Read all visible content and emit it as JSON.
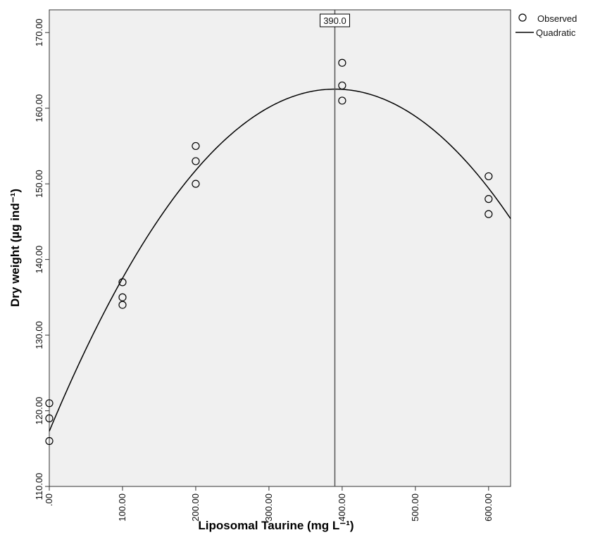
{
  "chart_data": {
    "type": "scatter",
    "xlabel": "Liposomal Taurine (mg L⁻¹)",
    "ylabel": "Dry weight (µg ind⁻¹)",
    "xlim": [
      0,
      630
    ],
    "ylim": [
      110,
      173
    ],
    "x_ticks": [
      0,
      100,
      200,
      300,
      400,
      500,
      600
    ],
    "x_tick_labels": [
      ".00",
      "100.00",
      "200.00",
      "300.00",
      "400.00",
      "500.00",
      "600.00"
    ],
    "y_ticks": [
      110,
      120,
      130,
      140,
      150,
      160,
      170
    ],
    "y_tick_labels": [
      "110.00",
      "120.00",
      "130.00",
      "140.00",
      "150.00",
      "160.00",
      "170.00"
    ],
    "background": "#f0f0f0",
    "grid": false,
    "legend_position": "top-right",
    "series": [
      {
        "name": "Observed",
        "kind": "points",
        "x": [
          0,
          0,
          0,
          100,
          100,
          100,
          200,
          200,
          200,
          400,
          400,
          400,
          600,
          600,
          600
        ],
        "y": [
          121,
          119,
          116,
          137,
          135,
          134,
          155,
          153,
          150,
          166,
          163,
          161,
          151,
          148,
          146
        ]
      },
      {
        "name": "Quadratic",
        "kind": "fit",
        "equation": {
          "a": 117.3,
          "b": 0.2319,
          "c": -0.0002973
        }
      }
    ],
    "reference_line": {
      "x": 390,
      "label": "390.0"
    }
  }
}
